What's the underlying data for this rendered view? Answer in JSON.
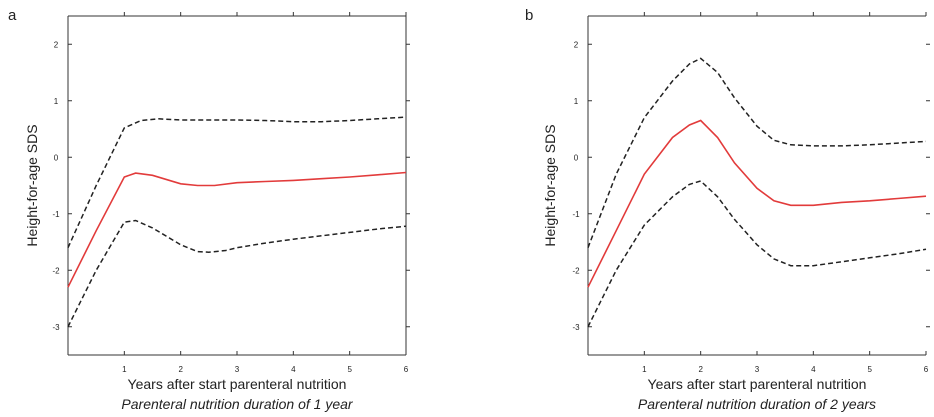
{
  "chart_data": [
    {
      "panel": "a",
      "type": "line",
      "xlabel": "Years after start parenteral nutrition",
      "subtitle": "Parenteral nutrition duration of 1 year",
      "ylabel": "Height-for-age SDS",
      "xlim": [
        0,
        6
      ],
      "ylim": [
        -3.5,
        2.5
      ],
      "xticks": [
        1,
        2,
        3,
        4,
        5,
        6
      ],
      "yticks": [
        -3,
        -2,
        -1,
        0,
        1,
        2
      ],
      "series": [
        {
          "role": "mean",
          "style": "solid",
          "color": "#e23b3b",
          "x": [
            0,
            0.5,
            1.0,
            1.2,
            1.5,
            2.0,
            2.3,
            2.6,
            3.0,
            3.5,
            4.0,
            4.5,
            5.0,
            5.5,
            6.0
          ],
          "y": [
            -2.3,
            -1.3,
            -0.35,
            -0.28,
            -0.32,
            -0.47,
            -0.5,
            -0.5,
            -0.45,
            -0.43,
            -0.41,
            -0.38,
            -0.35,
            -0.31,
            -0.27
          ]
        },
        {
          "role": "upper",
          "style": "dashed",
          "color": "#222222",
          "x": [
            0,
            0.5,
            1.0,
            1.3,
            1.6,
            2.0,
            2.5,
            3.0,
            3.5,
            4.0,
            4.5,
            5.0,
            5.5,
            6.0
          ],
          "y": [
            -1.6,
            -0.5,
            0.52,
            0.65,
            0.68,
            0.66,
            0.66,
            0.66,
            0.65,
            0.63,
            0.63,
            0.65,
            0.68,
            0.71
          ]
        },
        {
          "role": "lower",
          "style": "dashed",
          "color": "#222222",
          "x": [
            0,
            0.5,
            1.0,
            1.2,
            1.5,
            2.0,
            2.3,
            2.5,
            2.8,
            3.0,
            3.5,
            4.0,
            4.5,
            5.0,
            5.5,
            6.0
          ],
          "y": [
            -3.0,
            -2.0,
            -1.15,
            -1.12,
            -1.25,
            -1.55,
            -1.67,
            -1.68,
            -1.65,
            -1.6,
            -1.52,
            -1.45,
            -1.39,
            -1.33,
            -1.27,
            -1.22
          ]
        }
      ]
    },
    {
      "panel": "b",
      "type": "line",
      "xlabel": "Years after start parenteral nutrition",
      "subtitle": "Parenteral nutrition duration of 2 years",
      "ylabel": "Height-for-age SDS",
      "xlim": [
        0,
        6
      ],
      "ylim": [
        -3.5,
        2.5
      ],
      "xticks": [
        1,
        2,
        3,
        4,
        5,
        6
      ],
      "yticks": [
        -3,
        -2,
        -1,
        0,
        1,
        2
      ],
      "series": [
        {
          "role": "mean",
          "style": "solid",
          "color": "#e23b3b",
          "x": [
            0,
            0.5,
            1.0,
            1.5,
            1.8,
            2.0,
            2.3,
            2.6,
            3.0,
            3.3,
            3.6,
            4.0,
            4.5,
            5.0,
            5.5,
            6.0
          ],
          "y": [
            -2.3,
            -1.3,
            -0.3,
            0.35,
            0.57,
            0.65,
            0.35,
            -0.1,
            -0.55,
            -0.77,
            -0.85,
            -0.85,
            -0.8,
            -0.77,
            -0.73,
            -0.69
          ]
        },
        {
          "role": "upper",
          "style": "dashed",
          "color": "#222222",
          "x": [
            0,
            0.5,
            1.0,
            1.5,
            1.8,
            2.0,
            2.3,
            2.6,
            3.0,
            3.3,
            3.6,
            4.0,
            4.5,
            5.0,
            5.5,
            6.0
          ],
          "y": [
            -1.6,
            -0.3,
            0.7,
            1.35,
            1.65,
            1.75,
            1.5,
            1.05,
            0.55,
            0.3,
            0.22,
            0.2,
            0.2,
            0.22,
            0.25,
            0.28
          ]
        },
        {
          "role": "lower",
          "style": "dashed",
          "color": "#222222",
          "x": [
            0,
            0.5,
            1.0,
            1.5,
            1.8,
            2.0,
            2.3,
            2.6,
            3.0,
            3.3,
            3.6,
            4.0,
            4.5,
            5.0,
            5.5,
            6.0
          ],
          "y": [
            -3.0,
            -2.0,
            -1.2,
            -0.7,
            -0.48,
            -0.42,
            -0.7,
            -1.1,
            -1.55,
            -1.8,
            -1.92,
            -1.92,
            -1.85,
            -1.78,
            -1.71,
            -1.63
          ]
        }
      ]
    }
  ]
}
